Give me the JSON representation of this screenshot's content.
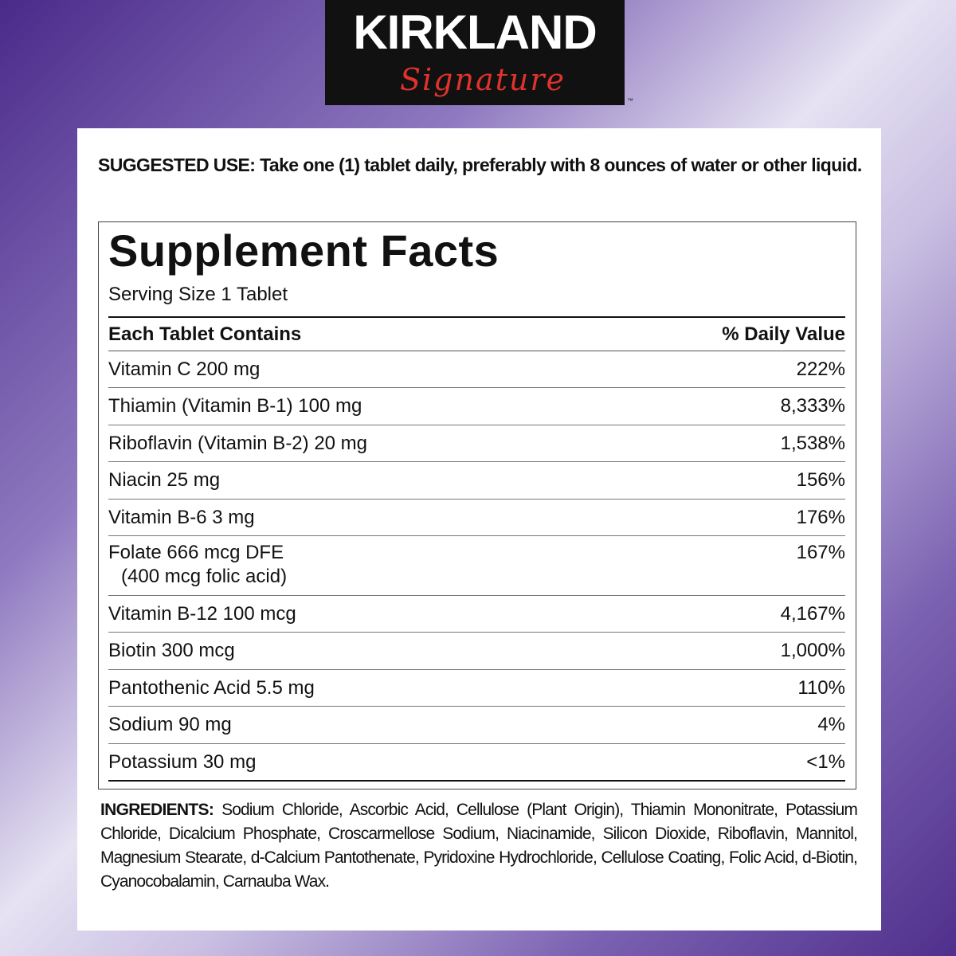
{
  "logo": {
    "brand": "KIRKLAND",
    "script": "Signature",
    "tm": "™"
  },
  "suggested_use": {
    "label": "SUGGESTED USE:",
    "text": "Take one (1) tablet daily, preferably with 8 ounces of water or other liquid."
  },
  "facts": {
    "title": "Supplement Facts",
    "serving": "Serving Size 1 Tablet",
    "header_left": "Each Tablet Contains",
    "header_right": "% Daily Value",
    "rows": [
      {
        "name": "Vitamin C 200 mg",
        "dv": "222%"
      },
      {
        "name": "Thiamin (Vitamin B-1) 100 mg",
        "dv": "8,333%"
      },
      {
        "name": "Riboflavin (Vitamin B-2) 20 mg",
        "dv": "1,538%"
      },
      {
        "name": "Niacin 25 mg",
        "dv": "156%"
      },
      {
        "name": "Vitamin B-6 3 mg",
        "dv": "176%"
      },
      {
        "name": "Folate 666 mcg DFE",
        "sub": "(400 mcg folic acid)",
        "dv": "167%"
      },
      {
        "name": "Vitamin B-12 100 mcg",
        "dv": "4,167%"
      },
      {
        "name": "Biotin 300 mcg",
        "dv": "1,000%"
      },
      {
        "name": "Pantothenic Acid 5.5 mg",
        "dv": "110%"
      },
      {
        "name": "Sodium 90 mg",
        "dv": "4%"
      },
      {
        "name": "Potassium 30 mg",
        "dv": "<1%"
      }
    ]
  },
  "ingredients": {
    "label": "INGREDIENTS:",
    "text": "Sodium Chloride, Ascorbic Acid, Cellulose (Plant Origin), Thiamin Mononitrate, Potassium Chloride, Dicalcium Phosphate, Croscarmellose Sodium, Niacinamide, Silicon Dioxide, Riboflavin, Mannitol, Magnesium Stearate, d-Calcium Pantothenate, Pyridoxine Hydrochloride, Cellulose Coating, Folic Acid, d-Biotin, Cyanocobalamin, Carnauba Wax."
  }
}
